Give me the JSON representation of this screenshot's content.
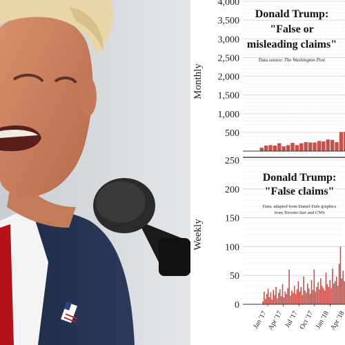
{
  "colors": {
    "bar": "#c8504a",
    "grid": "#e3e3e3",
    "background_photo": "#d9dcdf"
  },
  "photo": {
    "subject": "man speaking into a microphone"
  },
  "chart_data": [
    {
      "type": "bar",
      "title_lines": [
        "Donald Trump:",
        "\"False or",
        "misleading claims\""
      ],
      "source_prefix": "Data source: ",
      "source_italic": "The Washington Post",
      "ylabel": "Monthly",
      "ylim": [
        0,
        4000
      ],
      "yticks": [
        "500",
        "1,000",
        "1,500",
        "2,000",
        "2,500",
        "3,000",
        "3,500",
        "4,000"
      ],
      "ytick_values": [
        500,
        1000,
        1500,
        2000,
        2500,
        3000,
        3500,
        4000
      ],
      "grid": true,
      "values": [
        90,
        150,
        160,
        150,
        210,
        130,
        160,
        220,
        160,
        210,
        240,
        230,
        230,
        270,
        260,
        310,
        300,
        240,
        510,
        520
      ]
    },
    {
      "type": "bar",
      "title_lines": [
        "Donald Trump:",
        "\"False claims\""
      ],
      "source_line1": "Data: adapted from Daniel Dale graphics",
      "source_line2_prefix": "from ",
      "source_line2_italic": "Toronto Star",
      "source_line2_suffix": " and CNN",
      "ylabel": "Weekly",
      "ylim": [
        0,
        250
      ],
      "yticks": [
        "0",
        "50",
        "100",
        "150",
        "200",
        "250"
      ],
      "ytick_values": [
        0,
        50,
        100,
        150,
        200,
        250
      ],
      "grid": true,
      "xticks": [
        "Jan '17",
        "Apr '17",
        "Jul '17",
        "Oct '17",
        "Jan '18",
        "Apr '18"
      ],
      "values": [
        5,
        22,
        9,
        18,
        27,
        12,
        21,
        8,
        25,
        16,
        30,
        10,
        20,
        26,
        14,
        35,
        12,
        22,
        18,
        28,
        60,
        15,
        24,
        20,
        32,
        18,
        26,
        40,
        22,
        30,
        16,
        48,
        24,
        20,
        36,
        28,
        18,
        42,
        25,
        60,
        22,
        30,
        38,
        26,
        45,
        32,
        28,
        24,
        55,
        35,
        30,
        42,
        28,
        62,
        36,
        40,
        48,
        32,
        70,
        100,
        45,
        58,
        40,
        55
      ]
    }
  ]
}
